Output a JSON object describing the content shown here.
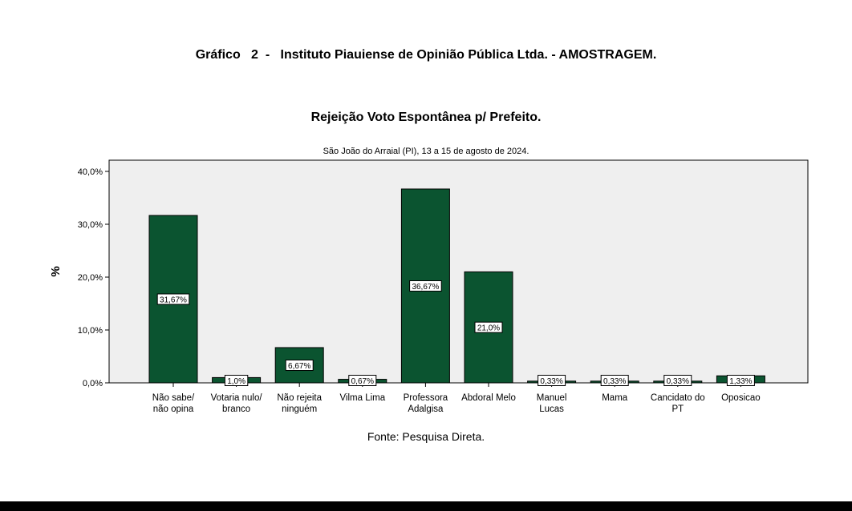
{
  "header": {
    "title": "Gráfico   2  -   Instituto Piauiense de Opinião Pública Ltda. - AMOSTRAGEM."
  },
  "chart_data": {
    "type": "bar",
    "title": "Rejeição Voto Espontânea p/ Prefeito.",
    "subtitle": "São João do Arraial (PI), 13 a 15 de agosto de 2024.",
    "xlabel": "",
    "ylabel": "%",
    "ylim": [
      0,
      40
    ],
    "yticks": [
      0,
      10,
      20,
      30,
      40
    ],
    "ytick_labels": [
      "0,0%",
      "10,0%",
      "20,0%",
      "30,0%",
      "40,0%"
    ],
    "grid": false,
    "categories": [
      [
        "Não sabe/",
        "não opina"
      ],
      [
        "Votaria nulo/",
        "branco"
      ],
      [
        "Não rejeita",
        "ninguém"
      ],
      [
        "Vilma Lima"
      ],
      [
        "Professora",
        "Adalgisa"
      ],
      [
        "Abdoral Melo"
      ],
      [
        "Manuel",
        "Lucas"
      ],
      [
        "Mama"
      ],
      [
        "Cancidato do",
        "PT"
      ],
      [
        "Oposicao"
      ]
    ],
    "values": [
      31.67,
      1.0,
      6.67,
      0.67,
      36.67,
      21.0,
      0.33,
      0.33,
      0.33,
      1.33
    ],
    "data_labels": [
      "31,67%",
      "1,0%",
      "6,67%",
      "0,67%",
      "36,67%",
      "21,0%",
      "0,33%",
      "0,33%",
      "0,33%",
      "1,33%"
    ],
    "bar_color": "#0b5430",
    "plot_background": "#efefef"
  },
  "footer": {
    "source": "Fonte: Pesquisa Direta."
  }
}
